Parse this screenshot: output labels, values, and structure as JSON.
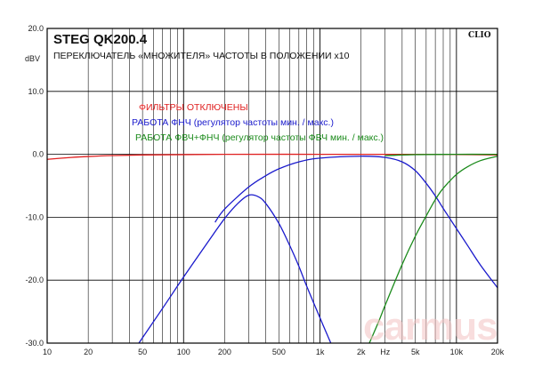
{
  "chart_data": {
    "type": "line",
    "title": "STEG QK200.4",
    "subtitle": "ПЕРЕКЛЮЧАТЕЛЬ «МНОЖИТЕЛЯ» ЧАСТОТЫ В ПОЛОЖЕНИИ x10",
    "brand": "CLIO",
    "watermark": "carmus",
    "ylabel": "dBV",
    "x_scale": "log",
    "xlim": [
      10,
      20000
    ],
    "ylim": [
      -30,
      20
    ],
    "grid": true,
    "x_ticks": [
      {
        "v": 10,
        "label": "10"
      },
      {
        "v": 20,
        "label": "20"
      },
      {
        "v": 50,
        "label": "50"
      },
      {
        "v": 100,
        "label": "100"
      },
      {
        "v": 200,
        "label": "200"
      },
      {
        "v": 500,
        "label": "500"
      },
      {
        "v": 1000,
        "label": "1k"
      },
      {
        "v": 2000,
        "label": "2k"
      },
      {
        "v": 3000,
        "label": "Hz"
      },
      {
        "v": 5000,
        "label": "5k"
      },
      {
        "v": 10000,
        "label": "10k"
      },
      {
        "v": 20000,
        "label": "20k"
      }
    ],
    "y_ticks": [
      {
        "v": 20,
        "label": "20.0"
      },
      {
        "v": 10,
        "label": "10.0"
      },
      {
        "v": 0,
        "label": "0.0"
      },
      {
        "v": -10,
        "label": "-10.0"
      },
      {
        "v": -20,
        "label": "-20.0"
      },
      {
        "v": -30,
        "label": "-30.0"
      }
    ],
    "legend_placement": "top-center",
    "series": [
      {
        "name": "ФИЛЬТРЫ ОТКЛЮЧЕНЫ",
        "color": "#e02020",
        "points": [
          [
            10,
            -0.8
          ],
          [
            15,
            -0.5
          ],
          [
            20,
            -0.35
          ],
          [
            30,
            -0.2
          ],
          [
            50,
            -0.1
          ],
          [
            100,
            -0.05
          ],
          [
            200,
            0
          ],
          [
            1000,
            0
          ],
          [
            5000,
            0
          ],
          [
            10000,
            -0.03
          ],
          [
            20000,
            -0.1
          ]
        ]
      },
      {
        "name": "РАБОТА ФНЧ (регулятор частоты мин. / макс.)",
        "color": "#1a1acc",
        "curves": [
          [
            [
              47,
              -30
            ],
            [
              70,
              -24.5
            ],
            [
              100,
              -19.5
            ],
            [
              150,
              -14
            ],
            [
              200,
              -10.2
            ],
            [
              250,
              -7.8
            ],
            [
              300,
              -6.5
            ],
            [
              350,
              -6.7
            ],
            [
              400,
              -7.8
            ],
            [
              500,
              -11
            ],
            [
              600,
              -14.5
            ],
            [
              700,
              -17.8
            ],
            [
              800,
              -21
            ],
            [
              1000,
              -26
            ],
            [
              1200,
              -30
            ]
          ],
          [
            [
              170,
              -10.8
            ],
            [
              200,
              -8.7
            ],
            [
              300,
              -5.2
            ],
            [
              400,
              -3.4
            ],
            [
              500,
              -2.3
            ],
            [
              700,
              -1.2
            ],
            [
              1000,
              -0.6
            ],
            [
              2000,
              -0.3
            ],
            [
              3000,
              -0.5
            ],
            [
              4000,
              -1.2
            ],
            [
              5000,
              -2.6
            ],
            [
              6000,
              -4.6
            ],
            [
              7000,
              -6.6
            ],
            [
              8000,
              -8.6
            ],
            [
              10000,
              -11.8
            ],
            [
              12000,
              -14.4
            ],
            [
              15000,
              -17.6
            ],
            [
              20000,
              -21.2
            ]
          ]
        ]
      },
      {
        "name": "РАБОТА ФВЧ+ФНЧ (регулятор частоты ФВЧ мин. / макс.)",
        "color": "#1a8a1a",
        "curves": [
          [
            [
              2300,
              -30
            ],
            [
              2700,
              -26.5
            ],
            [
              3000,
              -24
            ],
            [
              4000,
              -17.5
            ],
            [
              5000,
              -13
            ],
            [
              6000,
              -9.8
            ],
            [
              7000,
              -7.2
            ],
            [
              8000,
              -5.4
            ],
            [
              10000,
              -3.2
            ],
            [
              12000,
              -2.0
            ],
            [
              15000,
              -1.0
            ],
            [
              20000,
              -0.3
            ]
          ],
          [
            [
              3000,
              -0.2
            ],
            [
              5000,
              -0.05
            ],
            [
              10000,
              0
            ],
            [
              20000,
              0
            ]
          ]
        ]
      }
    ]
  }
}
